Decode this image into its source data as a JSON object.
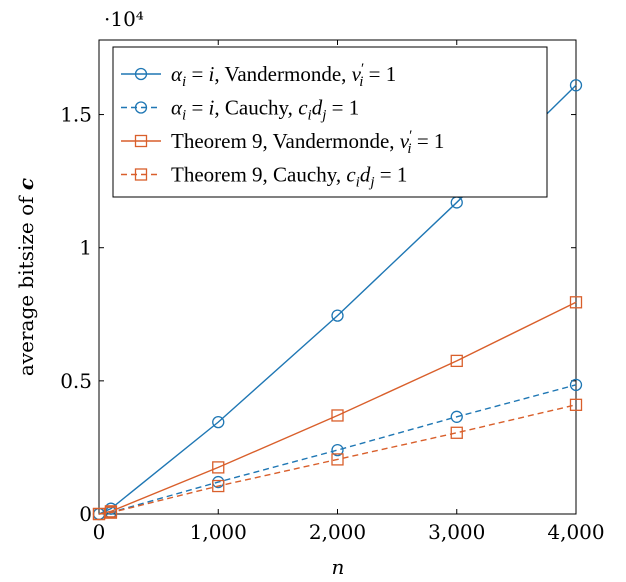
{
  "chart_data": {
    "type": "line",
    "xlabel": "n",
    "ylabel": "average bitsize of c",
    "y_multiplier": "·10⁴",
    "xlim": [
      0,
      4000
    ],
    "ylim": [
      0,
      17800
    ],
    "x_ticks": [
      0,
      1000,
      2000,
      3000,
      4000
    ],
    "x_tick_labels": [
      "0",
      "1,000",
      "2,000",
      "3,000",
      "4,000"
    ],
    "y_ticks": [
      0,
      5000,
      10000,
      15000
    ],
    "y_tick_labels": [
      "0",
      "0.5",
      "1",
      "1.5"
    ],
    "grid": false,
    "legend_position": "top-left",
    "x": [
      0,
      100,
      1000,
      2000,
      3000,
      4000
    ],
    "series": [
      {
        "name": "α_i = i, Vandermonde, v'_i = 1",
        "legend_parts": [
          [
            "α",
            "m"
          ],
          [
            "i",
            "sub"
          ],
          [
            " = ",
            "t"
          ],
          [
            "i",
            "m"
          ],
          [
            ", Vandermonde, ",
            "t"
          ],
          [
            "v",
            "m"
          ],
          [
            "′",
            "sup"
          ],
          [
            "i",
            "sub"
          ],
          [
            " = 1",
            "t"
          ]
        ],
        "color": "#1f77b4",
        "dashed": false,
        "marker": "circle",
        "values": [
          0,
          200,
          3450,
          7450,
          11700,
          16100
        ]
      },
      {
        "name": "α_i = i, Cauchy, c_i d_j = 1",
        "legend_parts": [
          [
            "α",
            "m"
          ],
          [
            "i",
            "sub"
          ],
          [
            " = ",
            "t"
          ],
          [
            "i",
            "m"
          ],
          [
            ", Cauchy, ",
            "t"
          ],
          [
            "c",
            "m"
          ],
          [
            "i",
            "sub"
          ],
          [
            "d",
            "m"
          ],
          [
            "j",
            "sub"
          ],
          [
            " = 1",
            "t"
          ]
        ],
        "color": "#1f77b4",
        "dashed": true,
        "marker": "circle",
        "values": [
          0,
          60,
          1200,
          2400,
          3650,
          4850
        ]
      },
      {
        "name": "Theorem 9, Vandermonde, v'_i = 1",
        "legend_parts": [
          [
            "Theorem 9, Vandermonde, ",
            "t"
          ],
          [
            "v",
            "m"
          ],
          [
            "′",
            "sup"
          ],
          [
            "i",
            "sub"
          ],
          [
            " = 1",
            "t"
          ]
        ],
        "color": "#d95f2b",
        "dashed": false,
        "marker": "square",
        "values": [
          0,
          100,
          1750,
          3700,
          5750,
          7950
        ]
      },
      {
        "name": "Theorem 9, Cauchy, c_i d_j = 1",
        "legend_parts": [
          [
            "Theorem 9, Cauchy, ",
            "t"
          ],
          [
            "c",
            "m"
          ],
          [
            "i",
            "sub"
          ],
          [
            "d",
            "m"
          ],
          [
            "j",
            "sub"
          ],
          [
            " = 1",
            "t"
          ]
        ],
        "color": "#d95f2b",
        "dashed": true,
        "marker": "square",
        "values": [
          0,
          50,
          1050,
          2050,
          3050,
          4100
        ]
      }
    ]
  }
}
